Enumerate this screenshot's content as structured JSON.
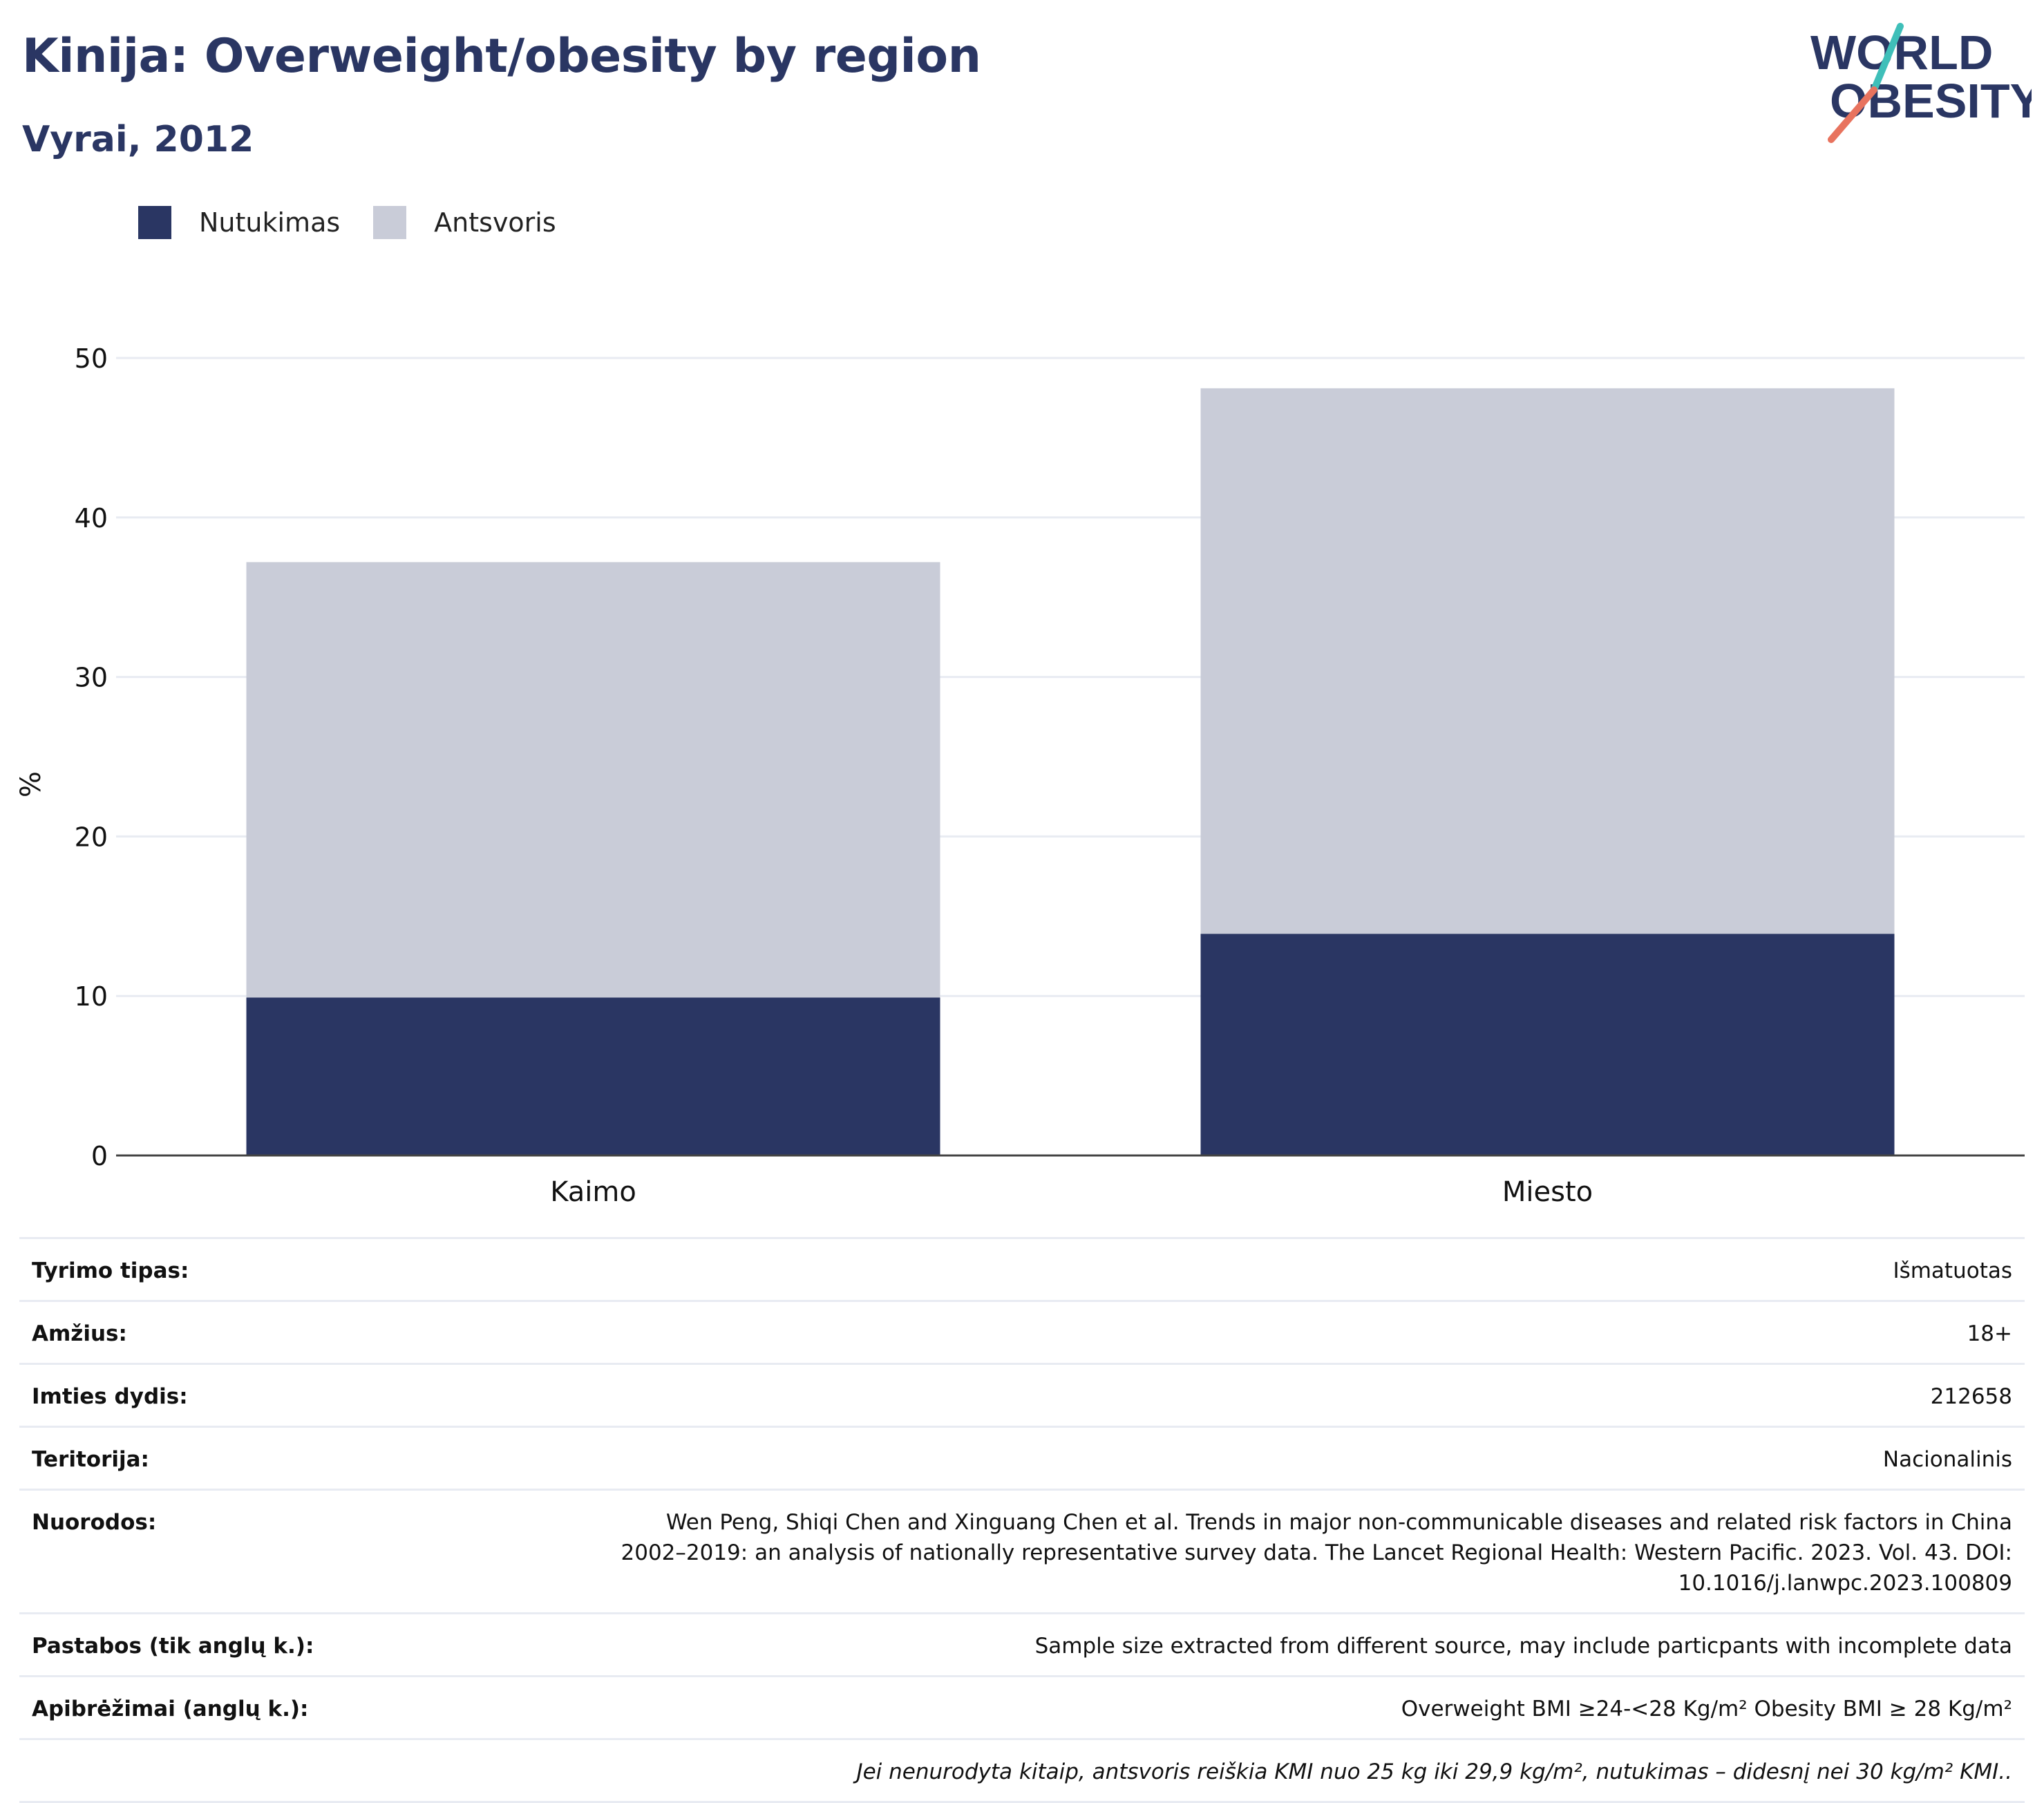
{
  "header": {
    "title": "Kinija: Overweight/obesity by region",
    "subtitle": "Vyrai, 2012"
  },
  "logo": {
    "line1": "WORLD",
    "line2": "OBESITY"
  },
  "colors": {
    "obesity": "#2a3663",
    "overweight": "#c9ccd8",
    "text_dark": "#2a3663",
    "logo_teal": "#3fbfb9",
    "logo_coral": "#e8735e"
  },
  "legend": {
    "items": [
      {
        "label": "Nutukimas",
        "color": "#2a3663"
      },
      {
        "label": "Antsvoris",
        "color": "#c9ccd8"
      }
    ]
  },
  "chart_data": {
    "type": "bar",
    "stacked": true,
    "categories": [
      "Kaimo",
      "Miesto"
    ],
    "series": [
      {
        "name": "Nutukimas",
        "values": [
          9.9,
          13.9
        ],
        "color": "#2a3663"
      },
      {
        "name": "Antsvoris",
        "values": [
          27.3,
          34.2
        ],
        "color": "#c9ccd8"
      }
    ],
    "ylabel": "%",
    "ylim": [
      0,
      50
    ],
    "yticks": [
      0,
      10,
      20,
      30,
      40,
      50
    ],
    "grid": true,
    "legend_position": "top-left"
  },
  "meta": {
    "rows": [
      {
        "key": "Tyrimo tipas:",
        "value": "Išmatuotas"
      },
      {
        "key": "Amžius:",
        "value": "18+"
      },
      {
        "key": "Imties dydis:",
        "value": "212658"
      },
      {
        "key": "Teritorija:",
        "value": "Nacionalinis"
      },
      {
        "key": "Nuorodos:",
        "value": "Wen Peng, Shiqi Chen and Xinguang Chen et al. Trends in major non-communicable diseases and related risk factors in China 2002–2019: an analysis of nationally representative survey data. The Lancet Regional Health: Western Pacific. 2023. Vol. 43. DOI: 10.1016/j.lanwpc.2023.100809"
      },
      {
        "key": "Pastabos (tik anglų k.):",
        "value": "Sample size extracted from different source, may include particpants with incomplete data"
      },
      {
        "key": "Apibrėžimai (anglų k.):",
        "value": "Overweight BMI ≥24-<28 Kg/m² Obesity BMI ≥ 28 Kg/m²"
      }
    ],
    "footnote": "Jei nenurodyta kitaip, antsvoris reiškia KMI nuo 25 kg iki 29,9 kg/m², nutukimas – didesnį nei 30 kg/m² KMI.."
  }
}
